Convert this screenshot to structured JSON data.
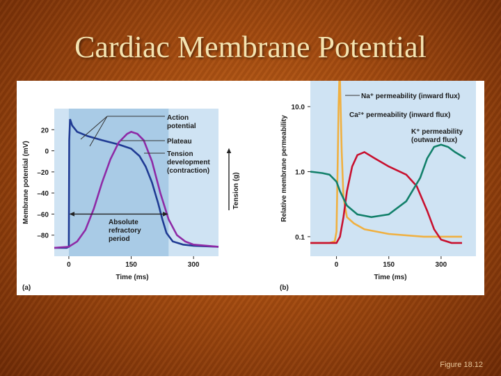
{
  "slide": {
    "title": "Cardiac Membrane Potential",
    "caption": "Figure 18.12"
  },
  "colors": {
    "membrane_potential": "#1f3a93",
    "tension": "#8e2aa6",
    "na": "#f0b040",
    "ca": "#c8102e",
    "k": "#12806a",
    "panel_bg": "#cfe3f3",
    "shade": "#a9cbe6"
  },
  "chart_data": [
    {
      "type": "line",
      "panel_label": "(a)",
      "xlabel": "Time (ms)",
      "ylabel": "Membrane potential (mV)",
      "y2label": "Tension (g)",
      "xticks": [
        0,
        150,
        300
      ],
      "yticks": [
        20,
        0,
        -20,
        -40,
        -60,
        -80
      ],
      "ytick_labels": [
        "20",
        "0",
        "–20",
        "–40",
        "–60",
        "–80"
      ],
      "xlim": [
        -35,
        360
      ],
      "ylim": [
        -100,
        40
      ],
      "shaded_region": [
        0,
        240
      ],
      "series": [
        {
          "name": "Action potential",
          "color_key": "membrane_potential",
          "x": [
            -35,
            -5,
            0,
            1,
            3,
            8,
            20,
            45,
            80,
            120,
            150,
            170,
            185,
            200,
            215,
            225,
            235,
            250,
            275,
            300,
            360
          ],
          "y": [
            -92,
            -92,
            -91,
            10,
            30,
            24,
            18,
            14,
            10,
            6,
            2,
            -5,
            -15,
            -30,
            -50,
            -65,
            -78,
            -86,
            -89,
            -90,
            -91
          ]
        },
        {
          "name": "Tension development (contraction)",
          "color_key": "tension",
          "x": [
            -35,
            0,
            20,
            40,
            60,
            80,
            100,
            120,
            140,
            150,
            165,
            180,
            200,
            220,
            240,
            260,
            280,
            300,
            360
          ],
          "y": [
            -92,
            -91,
            -86,
            -75,
            -55,
            -30,
            -8,
            8,
            16,
            18,
            16,
            10,
            -10,
            -40,
            -65,
            -80,
            -86,
            -89,
            -91
          ]
        }
      ],
      "annotations": {
        "action_potential": [
          "Action",
          "potential"
        ],
        "plateau": "Plateau",
        "tension": [
          "Tension",
          "development",
          "(contraction)"
        ],
        "arp": [
          "Absolute",
          "refractory",
          "period"
        ]
      }
    },
    {
      "type": "line",
      "panel_label": "(b)",
      "xlabel": "Time (ms)",
      "ylabel": "Relative membrane permeability",
      "y_scale": "log",
      "xticks": [
        0,
        150,
        300
      ],
      "yticks": [
        10.0,
        1.0,
        0.1
      ],
      "ytick_labels": [
        "10.0",
        "1.0",
        "0.1"
      ],
      "xlim": [
        -75,
        400
      ],
      "ylim": [
        0.05,
        25
      ],
      "series": [
        {
          "name": "Na+ permeability (inward flux)",
          "color_key": "na",
          "x": [
            -75,
            -20,
            -5,
            0,
            3,
            6,
            8,
            10,
            15,
            20,
            30,
            50,
            80,
            150,
            250,
            360
          ],
          "y": [
            0.08,
            0.08,
            0.085,
            0.12,
            1.0,
            10,
            25,
            25,
            2.0,
            0.4,
            0.2,
            0.16,
            0.13,
            0.11,
            0.1,
            0.1
          ]
        },
        {
          "name": "Ca2+ permeability (inward flux)",
          "color_key": "ca",
          "x": [
            -75,
            0,
            10,
            20,
            30,
            45,
            60,
            80,
            110,
            150,
            200,
            230,
            260,
            280,
            300,
            330,
            360
          ],
          "y": [
            0.08,
            0.08,
            0.1,
            0.2,
            0.5,
            1.2,
            1.8,
            2.0,
            1.6,
            1.2,
            0.9,
            0.6,
            0.25,
            0.13,
            0.09,
            0.08,
            0.08
          ]
        },
        {
          "name": "K+ permeability (outward flux)",
          "color_key": "k",
          "x": [
            -75,
            -40,
            -20,
            0,
            10,
            30,
            60,
            100,
            150,
            200,
            240,
            260,
            280,
            300,
            320,
            340,
            370
          ],
          "y": [
            1.0,
            0.95,
            0.9,
            0.7,
            0.5,
            0.3,
            0.22,
            0.2,
            0.22,
            0.35,
            0.8,
            1.6,
            2.4,
            2.6,
            2.4,
            2.0,
            1.6
          ]
        }
      ],
      "annotations": {
        "na": "Na⁺ permeability (inward flux)",
        "ca": "Ca²⁺ permeability (inward flux)",
        "k": [
          "K⁺ permeability",
          "(outward flux)"
        ]
      }
    }
  ]
}
